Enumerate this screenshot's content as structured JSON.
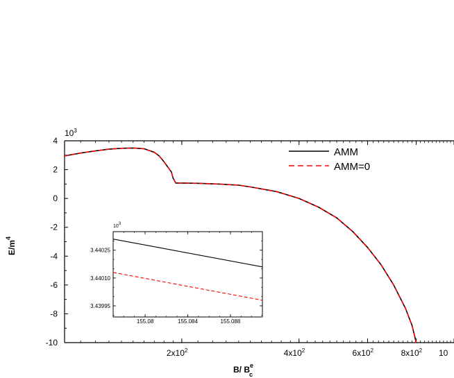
{
  "chart_data": {
    "type": "line",
    "xlabel": "B/ B",
    "xlabel_sup": "e",
    "xlabel_sub": "c",
    "ylabel": "E/m",
    "ylabel_sup": "4",
    "y_multiplier": "10",
    "y_multiplier_exp": "3",
    "xscale": "log",
    "xlim": [
      100,
      1000
    ],
    "ylim": [
      -10,
      4
    ],
    "grid": false,
    "legend_position": "top-right",
    "yticks": [
      {
        "value": 4,
        "label": "4"
      },
      {
        "value": 2,
        "label": "2"
      },
      {
        "value": 0,
        "label": "0"
      },
      {
        "value": -2,
        "label": "-2"
      },
      {
        "value": -4,
        "label": "-4"
      },
      {
        "value": -6,
        "label": "-6"
      },
      {
        "value": -8,
        "label": "-8"
      },
      {
        "value": -10,
        "label": "-10"
      }
    ],
    "xticks": [
      {
        "value": 200,
        "base": "2x10",
        "exp": "2"
      },
      {
        "value": 400,
        "base": "4x10",
        "exp": "2"
      },
      {
        "value": 600,
        "base": "6x10",
        "exp": "2"
      },
      {
        "value": 800,
        "base": "8x10",
        "exp": "2"
      },
      {
        "value": 1000,
        "base": "10",
        "exp": ""
      }
    ],
    "series": [
      {
        "name": "AMM",
        "color": "#000000",
        "dash": "solid",
        "x": [
          100,
          110,
          120,
          130,
          140,
          150,
          160,
          170,
          175,
          180,
          185,
          188,
          190,
          193,
          200,
          220,
          250,
          280,
          300,
          350,
          400,
          450,
          500,
          550,
          600,
          650,
          700,
          750,
          780,
          800
        ],
        "y": [
          2.95,
          3.15,
          3.3,
          3.42,
          3.48,
          3.5,
          3.45,
          3.2,
          2.95,
          2.55,
          2.1,
          1.85,
          1.4,
          1.07,
          1.07,
          1.05,
          1.0,
          0.92,
          0.8,
          0.48,
          0.0,
          -0.62,
          -1.35,
          -2.3,
          -3.4,
          -4.6,
          -6.0,
          -7.6,
          -8.8,
          -10.0
        ]
      },
      {
        "name": "AMM=0",
        "color": "#ff0000",
        "dash": "dashed",
        "x": [
          100,
          110,
          120,
          130,
          140,
          150,
          160,
          170,
          175,
          180,
          185,
          188,
          190,
          193,
          200,
          220,
          250,
          280,
          300,
          350,
          400,
          450,
          500,
          550,
          600,
          650,
          700,
          750,
          780,
          800
        ],
        "y": [
          2.95,
          3.15,
          3.3,
          3.42,
          3.48,
          3.5,
          3.45,
          3.2,
          2.95,
          2.55,
          2.1,
          1.85,
          1.4,
          1.07,
          1.07,
          1.05,
          1.0,
          0.92,
          0.8,
          0.48,
          0.0,
          -0.62,
          -1.35,
          -2.3,
          -3.4,
          -4.6,
          -6.0,
          -7.6,
          -8.8,
          -10.0
        ]
      }
    ],
    "inset": {
      "type": "line",
      "xlim": [
        155.077,
        155.091
      ],
      "ylim": [
        3.43989,
        3.44035
      ],
      "y_multiplier": "10",
      "y_multiplier_exp": "3",
      "xticks": [
        {
          "value": 155.08,
          "label": "155.08"
        },
        {
          "value": 155.084,
          "label": "155.084"
        },
        {
          "value": 155.088,
          "label": "155.088"
        }
      ],
      "yticks": [
        {
          "value": 3.44025,
          "label": "3.44025"
        },
        {
          "value": 3.4401,
          "label": "3.44010"
        },
        {
          "value": 3.43995,
          "label": "3.43995"
        }
      ],
      "series": [
        {
          "color": "#000000",
          "dash": "solid",
          "x": [
            155.077,
            155.091
          ],
          "y": [
            3.44031,
            3.44016
          ]
        },
        {
          "color": "#ff0000",
          "dash": "dashed",
          "x": [
            155.077,
            155.091
          ],
          "y": [
            3.44013,
            3.43998
          ]
        }
      ]
    }
  }
}
